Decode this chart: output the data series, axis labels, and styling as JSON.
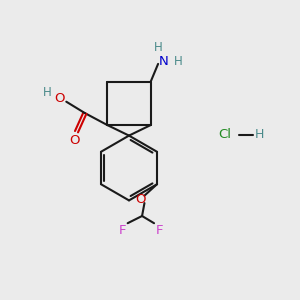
{
  "bg_color": "#ebebeb",
  "atom_colors": {
    "C": "#1a1a1a",
    "H": "#4a8a8a",
    "O": "#cc0000",
    "N": "#0000cc",
    "F": "#cc44cc",
    "Cl": "#228b22"
  },
  "bond_color": "#1a1a1a",
  "bond_width": 1.5
}
